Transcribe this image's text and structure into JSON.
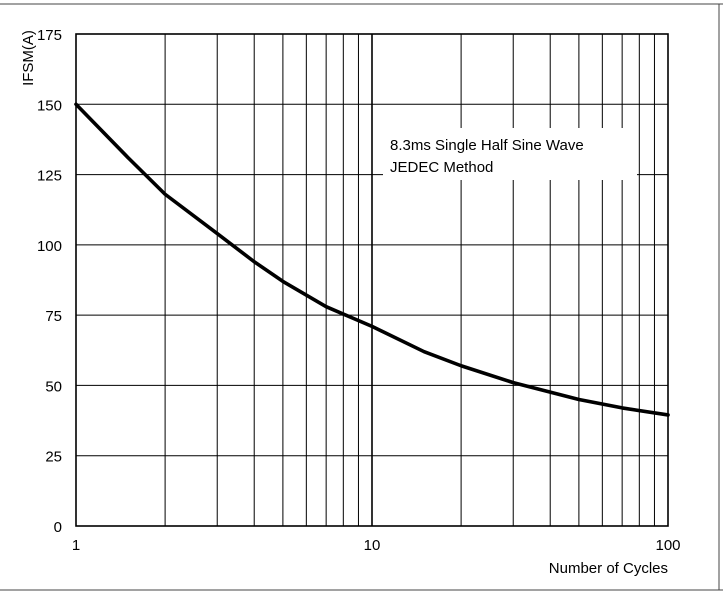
{
  "chart_data": {
    "type": "line",
    "title": "",
    "xlabel": "Number of Cycles",
    "ylabel": "IFSM(A)",
    "x_scale": "log",
    "xlim": [
      1,
      100
    ],
    "ylim": [
      0,
      175
    ],
    "x_ticks": [
      1,
      10,
      100
    ],
    "x_tick_labels": [
      "1",
      "10",
      "100"
    ],
    "y_ticks": [
      0,
      25,
      50,
      75,
      100,
      125,
      150,
      175
    ],
    "y_tick_labels": [
      "0",
      "25",
      "50",
      "75",
      "100",
      "125",
      "150",
      "175"
    ],
    "grid": true,
    "annotations": [
      "8.3ms Single Half Sine Wave",
      "JEDEC Method"
    ],
    "line_color": "#000000",
    "series": [
      {
        "x": [
          1,
          1.5,
          2,
          3,
          4,
          5,
          7,
          10,
          15,
          20,
          30,
          50,
          70,
          100
        ],
        "y": [
          150,
          131,
          118,
          104,
          94,
          87,
          78,
          71,
          62,
          57,
          51,
          45,
          42,
          39.5
        ]
      }
    ]
  }
}
